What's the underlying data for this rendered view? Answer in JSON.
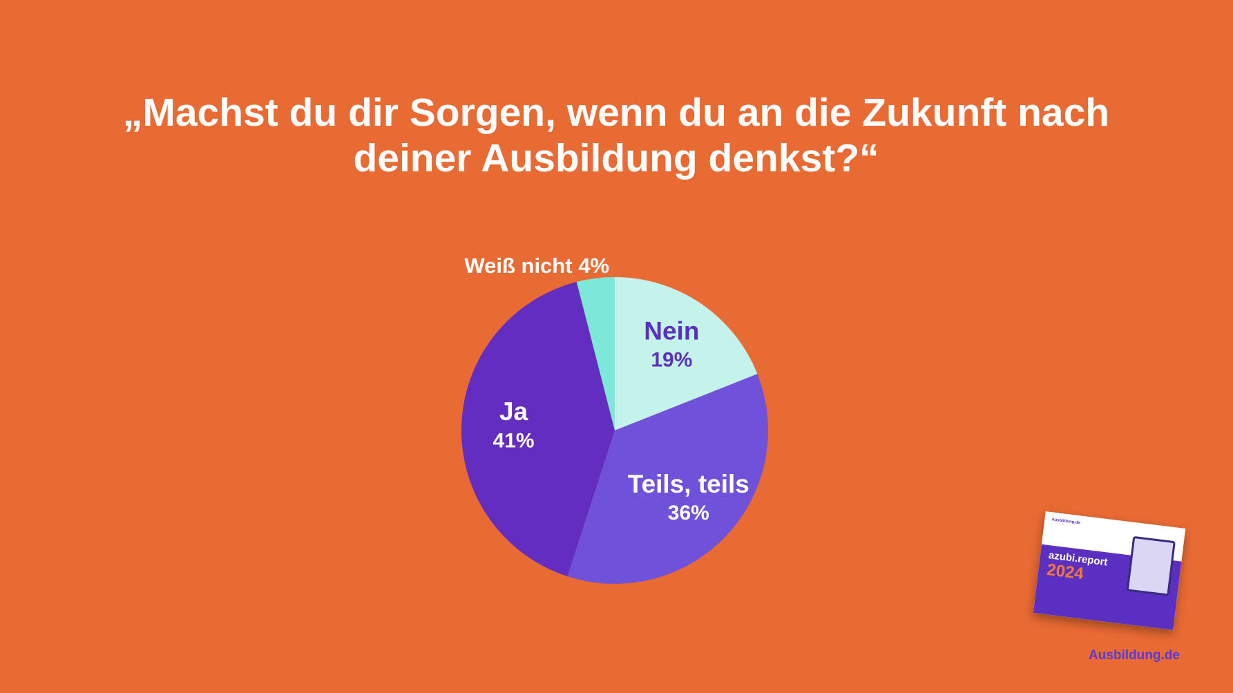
{
  "chart_data": {
    "type": "pie",
    "title": "„Machst du dir Sorgen, wenn du an die Zukunft nach deiner Ausbildung denkst?“",
    "categories": [
      "Nein",
      "Teils, teils",
      "Ja",
      "Weiß nicht"
    ],
    "values": [
      19,
      36,
      41,
      4
    ],
    "value_labels": [
      "19%",
      "36%",
      "41%",
      "4%"
    ],
    "colors": [
      "#c4f3ec",
      "#6f52d9",
      "#632ec0",
      "#7de8d6"
    ],
    "label_colors": [
      "#5b2fc0",
      "#ffffff",
      "#ffffff",
      "#ffffff"
    ]
  },
  "branding": {
    "report": "azubi.report",
    "year": "2024",
    "thumb_header": "Ausbildung.de",
    "logo": "Ausbildung.de"
  }
}
